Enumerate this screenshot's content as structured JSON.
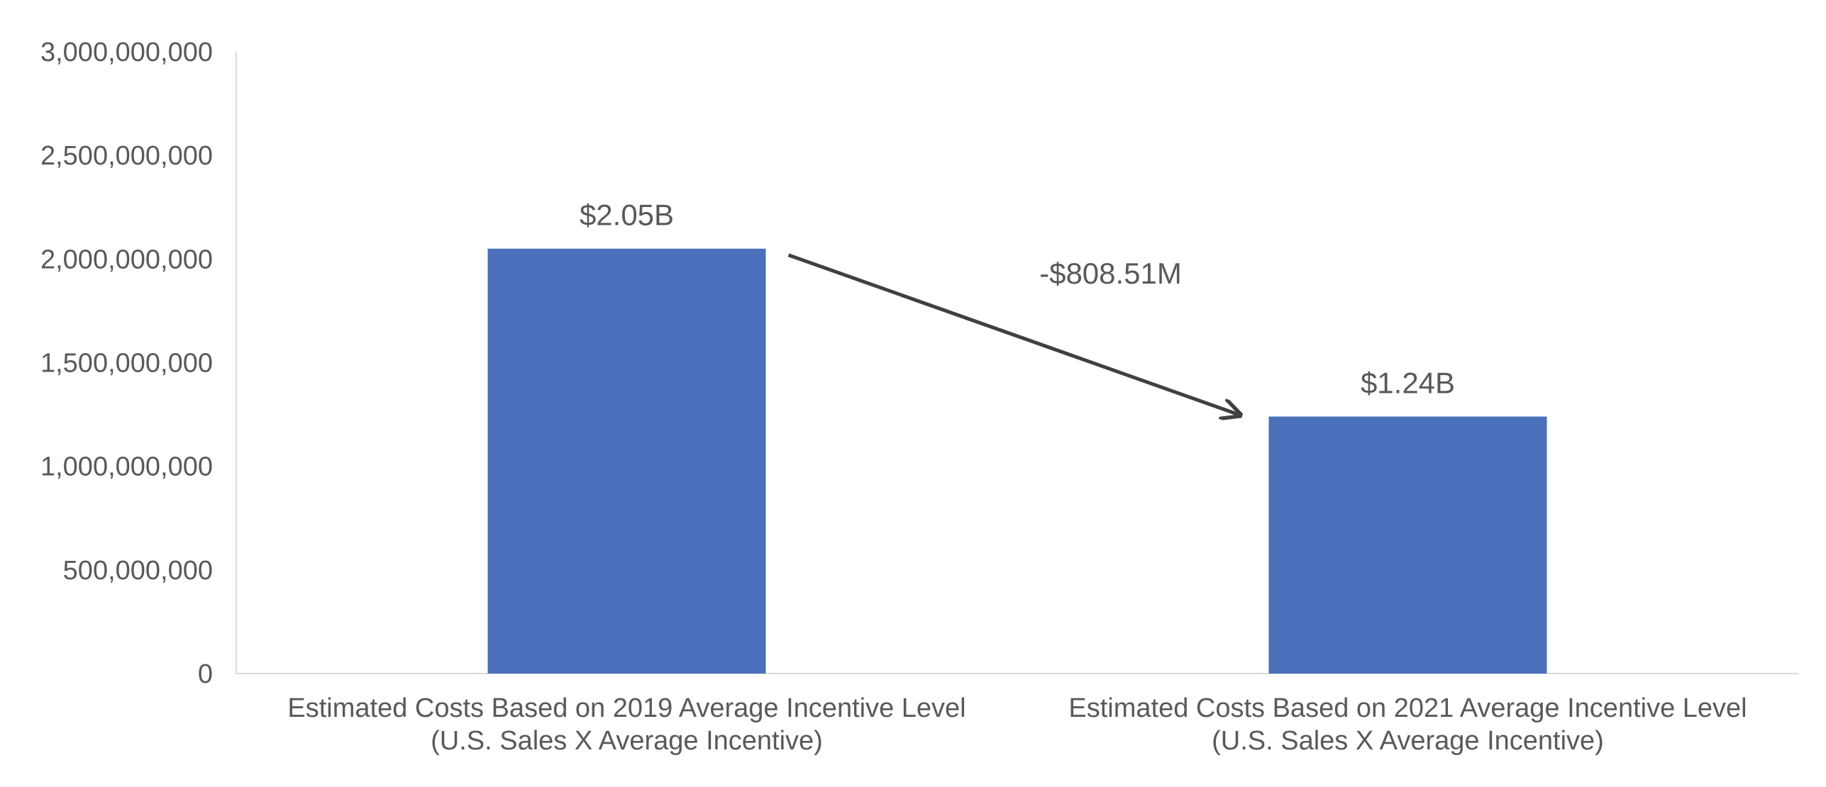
{
  "chart_data": {
    "type": "bar",
    "title": "",
    "xlabel": "",
    "ylabel": "",
    "ylim": [
      0,
      3000000000
    ],
    "grid": false,
    "legend": "none",
    "y_ticks": [
      {
        "value": 0,
        "label": "0"
      },
      {
        "value": 500000000,
        "label": "500,000,000"
      },
      {
        "value": 1000000000,
        "label": "1,000,000,000"
      },
      {
        "value": 1500000000,
        "label": "1,500,000,000"
      },
      {
        "value": 2000000000,
        "label": "2,000,000,000"
      },
      {
        "value": 2500000000,
        "label": "2,500,000,000"
      },
      {
        "value": 3000000000,
        "label": "3,000,000,000"
      }
    ],
    "categories": [
      [
        "Estimated Costs Based on 2019 Average Incentive Level",
        "(U.S. Sales X Average Incentive)"
      ],
      [
        "Estimated Costs Based on 2021 Average Incentive Level",
        "(U.S. Sales X Average Incentive)"
      ]
    ],
    "values": [
      2050000000,
      1240000000
    ],
    "data_labels": [
      "$2.05B",
      "$1.24B"
    ],
    "annotation": {
      "type": "arrow",
      "from_category": 0,
      "to_category": 1,
      "label": "-$808.51M"
    },
    "colors": {
      "bar": "#4A70BC",
      "axis": "#D9D9D9",
      "text": "#595959",
      "arrow": "#404040"
    }
  }
}
